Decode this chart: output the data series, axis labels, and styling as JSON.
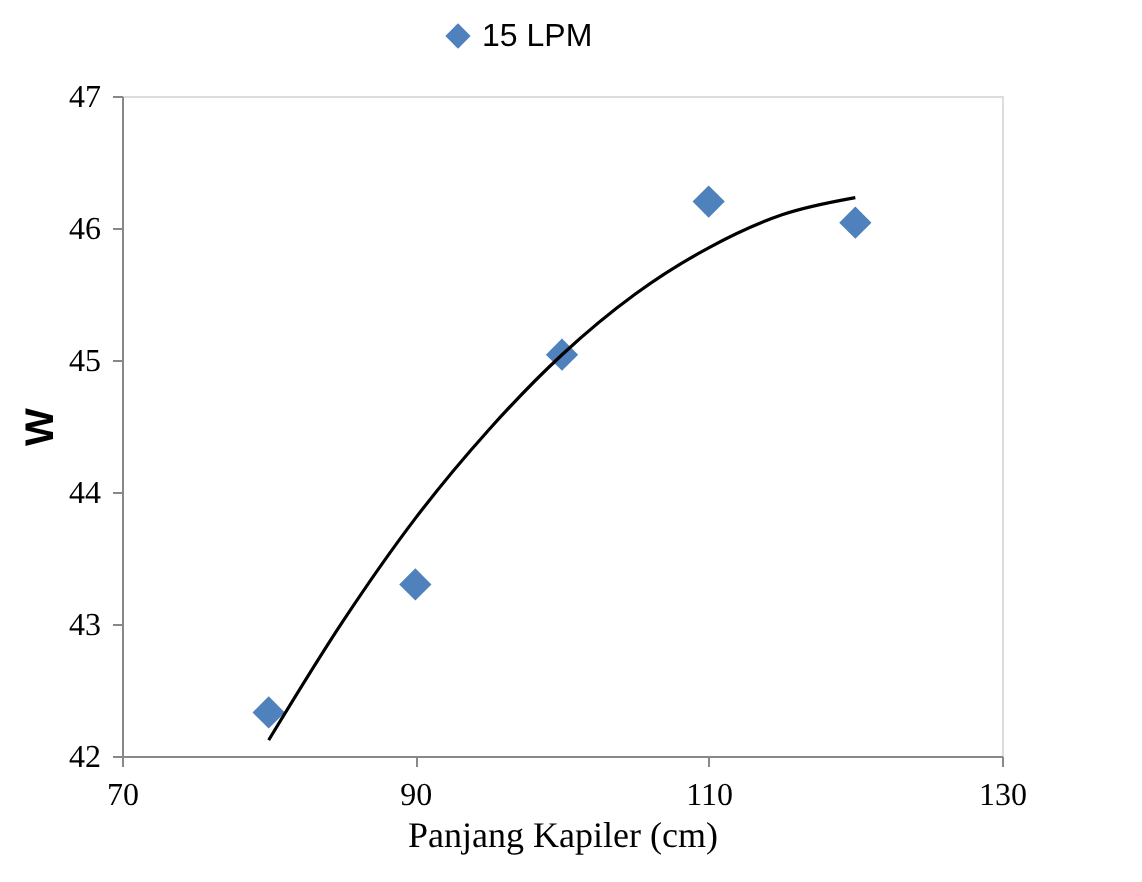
{
  "chart_data": {
    "type": "scatter",
    "xlabel": "Panjang Kapiler (cm)",
    "ylabel": "W",
    "x": [
      80,
      90,
      100,
      110,
      120
    ],
    "series": [
      {
        "name": "15 LPM",
        "color": "#4f81bd",
        "values": [
          42.33,
          43.3,
          45.04,
          46.2,
          46.04
        ],
        "marker": "diamond"
      },
      {
        "type": "line",
        "color": "#000000",
        "x": [
          80,
          85,
          90,
          95,
          100,
          105,
          110,
          115,
          120
        ],
        "values": [
          42.12,
          43.01,
          43.8,
          44.47,
          45.04,
          45.5,
          45.85,
          46.1,
          46.23
        ],
        "line_style": "solid"
      }
    ],
    "xlim": [
      70,
      130
    ],
    "xticks": [
      70,
      90,
      110,
      130
    ],
    "ylim": [
      42,
      47
    ],
    "yticks": [
      42,
      43,
      44,
      45,
      46,
      47
    ],
    "grid": false,
    "legend": "top"
  }
}
